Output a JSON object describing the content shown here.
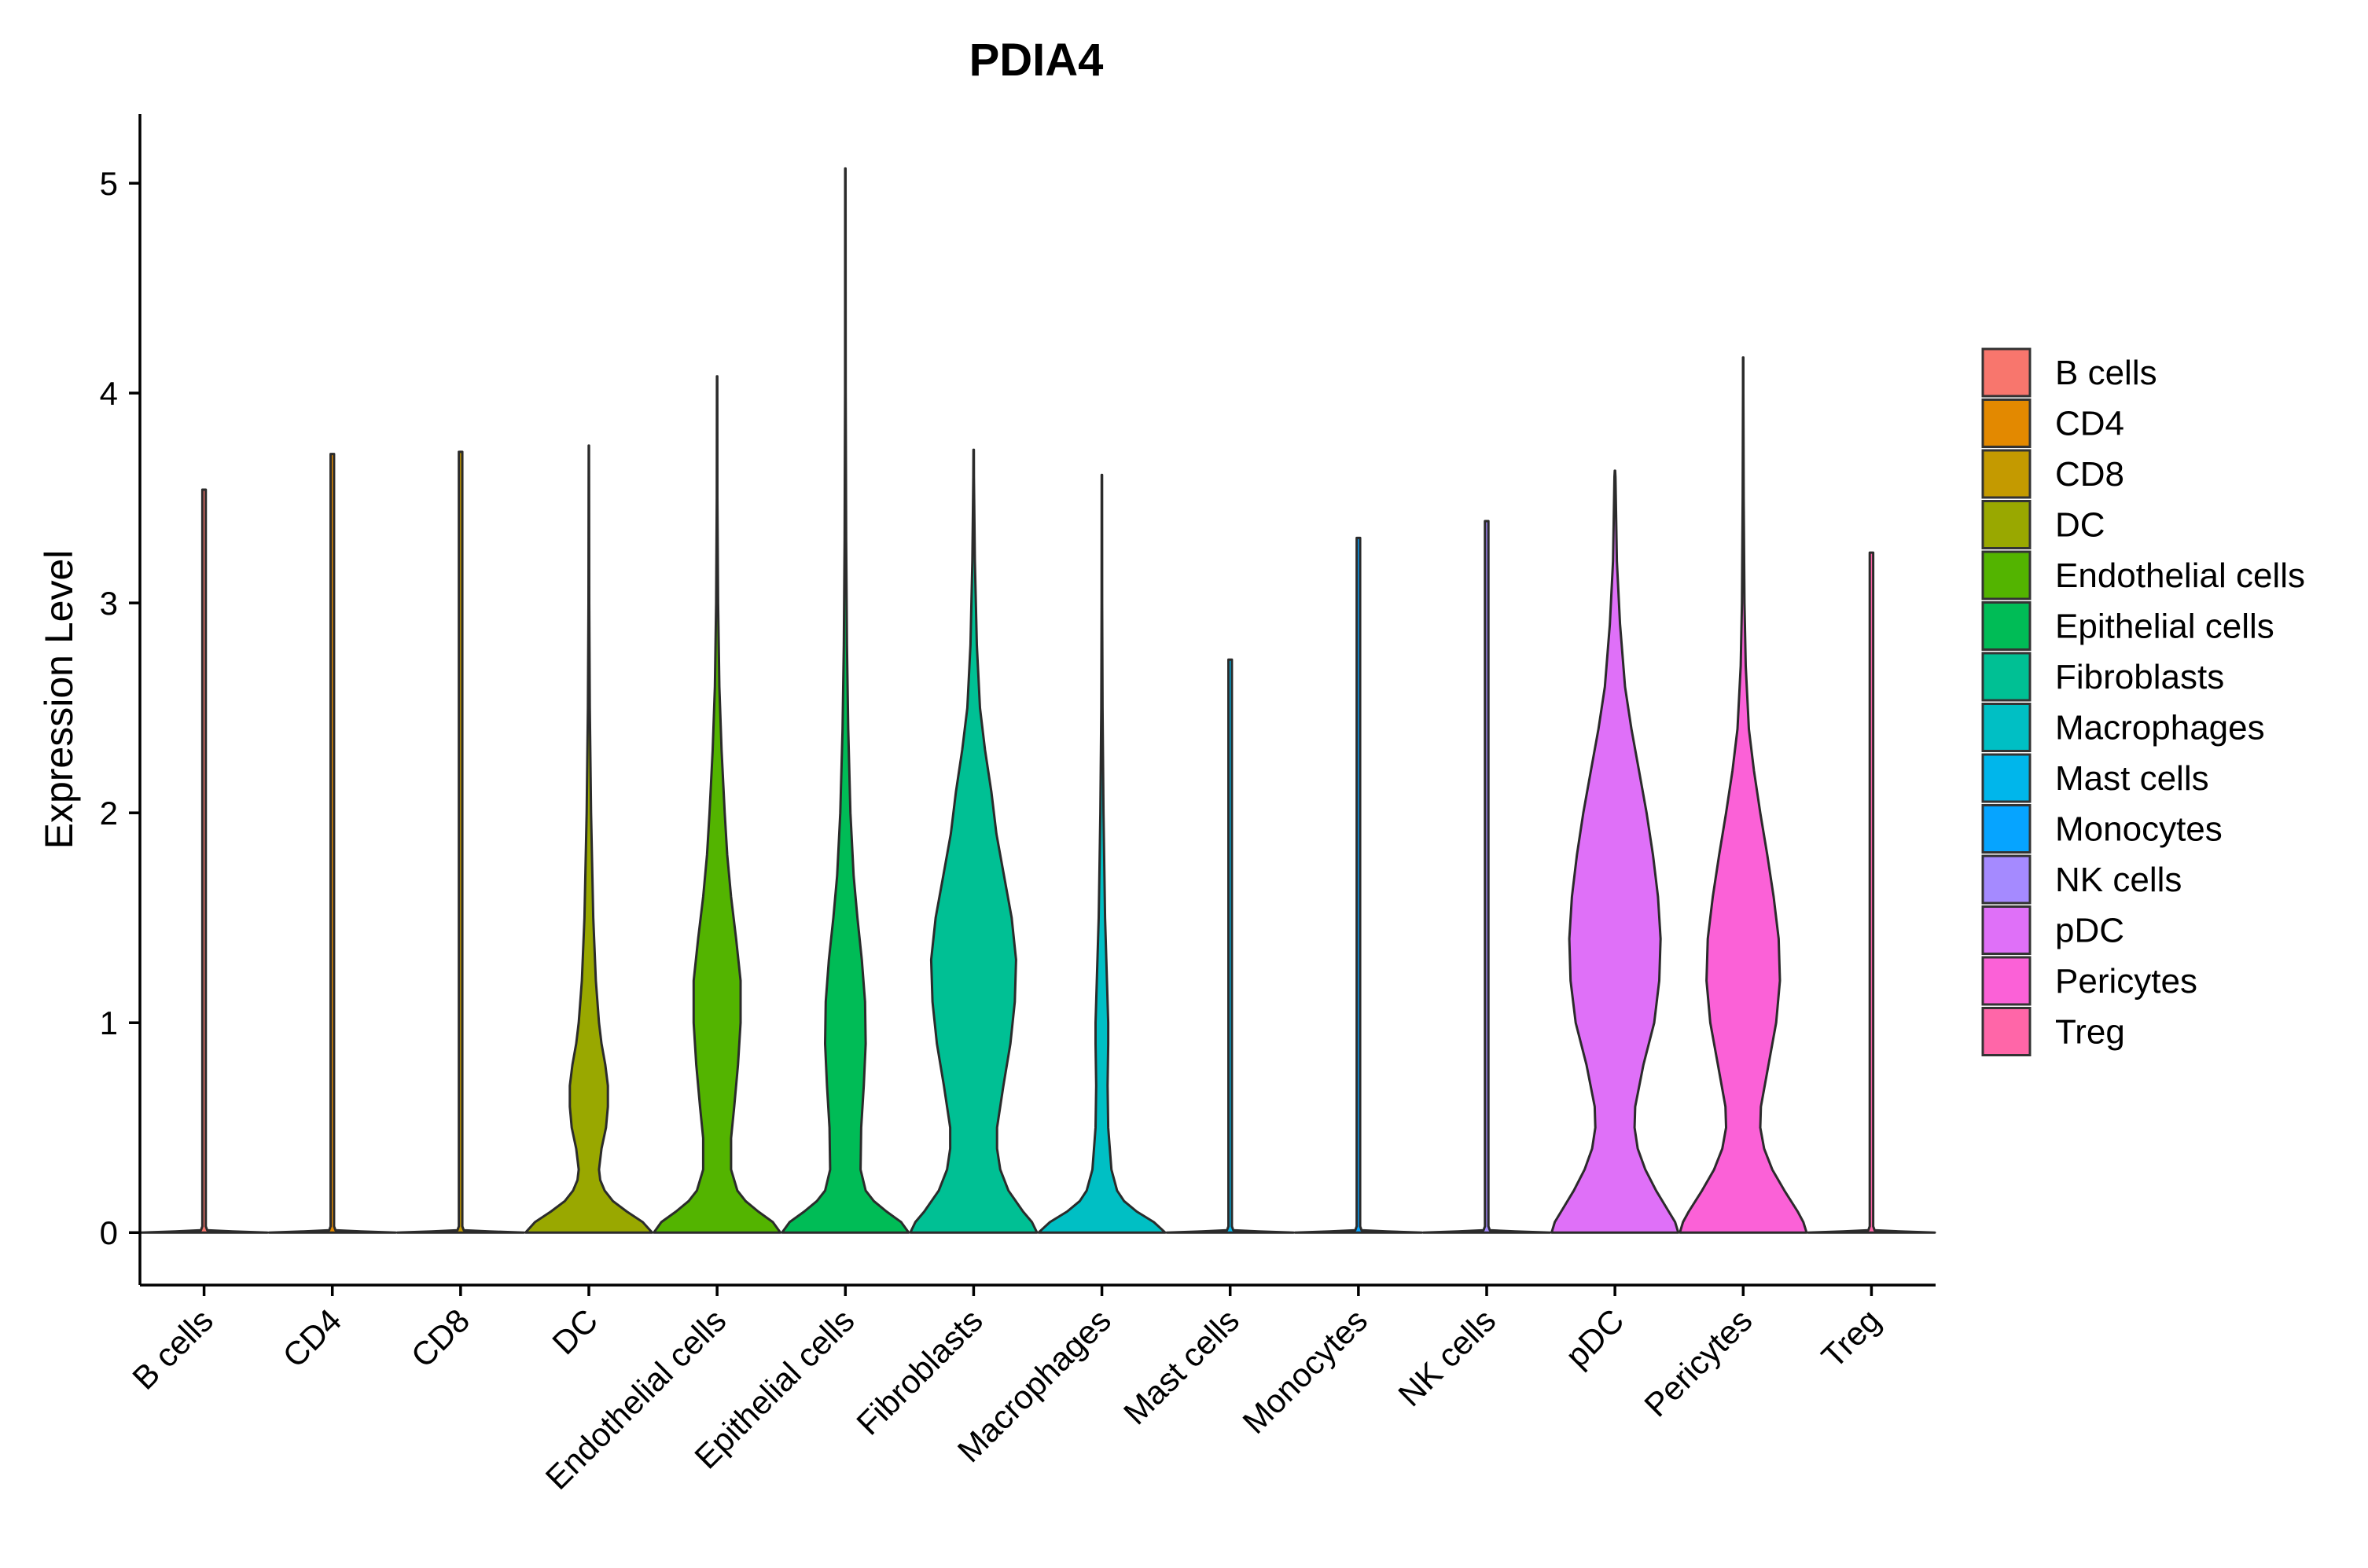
{
  "chart_data": {
    "type": "violin",
    "title": "PDIA4",
    "xlabel": "",
    "ylabel": "Expression Level",
    "ylim": [
      -0.25,
      5.33
    ],
    "yticks": [
      0,
      1,
      2,
      3,
      4,
      5
    ],
    "grid": false,
    "legend_position": "right",
    "categories": [
      "B cells",
      "CD4",
      "CD8",
      "DC",
      "Endothelial cells",
      "Epithelial cells",
      "Fibroblasts",
      "Macrophages",
      "Mast cells",
      "Monocytes",
      "NK cells",
      "pDC",
      "Pericytes",
      "Treg"
    ],
    "colors": [
      "#F8766D",
      "#E38900",
      "#C49A00",
      "#99A800",
      "#53B400",
      "#00BC56",
      "#00C094",
      "#00BFC4",
      "#00B6EB",
      "#06A4FF",
      "#A58AFF",
      "#DF70F8",
      "#FB61D7",
      "#FF66A8"
    ],
    "max_values": [
      3.54,
      3.71,
      3.72,
      3.75,
      4.08,
      5.07,
      3.73,
      3.61,
      2.73,
      3.31,
      3.39,
      3.63,
      4.17,
      3.24
    ],
    "density_profiles": [
      [],
      [],
      [],
      [
        [
          0,
          1.0
        ],
        [
          0.05,
          0.85
        ],
        [
          0.1,
          0.6
        ],
        [
          0.15,
          0.38
        ],
        [
          0.2,
          0.25
        ],
        [
          0.25,
          0.18
        ],
        [
          0.3,
          0.16
        ],
        [
          0.4,
          0.2
        ],
        [
          0.5,
          0.27
        ],
        [
          0.6,
          0.3
        ],
        [
          0.7,
          0.3
        ],
        [
          0.8,
          0.26
        ],
        [
          0.9,
          0.2
        ],
        [
          1.0,
          0.16
        ],
        [
          1.2,
          0.11
        ],
        [
          1.5,
          0.07
        ],
        [
          2.0,
          0.035
        ],
        [
          2.5,
          0.015
        ],
        [
          3.0,
          0.006
        ]
      ],
      [
        [
          0,
          1.0
        ],
        [
          0.05,
          0.88
        ],
        [
          0.1,
          0.65
        ],
        [
          0.15,
          0.45
        ],
        [
          0.2,
          0.32
        ],
        [
          0.3,
          0.22
        ],
        [
          0.45,
          0.22
        ],
        [
          0.6,
          0.27
        ],
        [
          0.8,
          0.33
        ],
        [
          1.0,
          0.37
        ],
        [
          1.2,
          0.37
        ],
        [
          1.4,
          0.3
        ],
        [
          1.6,
          0.22
        ],
        [
          1.8,
          0.16
        ],
        [
          2.0,
          0.12
        ],
        [
          2.3,
          0.07
        ],
        [
          2.6,
          0.035
        ],
        [
          3.0,
          0.015
        ],
        [
          3.5,
          0.005
        ]
      ],
      [
        [
          0,
          1.0
        ],
        [
          0.05,
          0.88
        ],
        [
          0.1,
          0.65
        ],
        [
          0.15,
          0.45
        ],
        [
          0.2,
          0.32
        ],
        [
          0.3,
          0.24
        ],
        [
          0.5,
          0.25
        ],
        [
          0.7,
          0.29
        ],
        [
          0.9,
          0.32
        ],
        [
          1.1,
          0.31
        ],
        [
          1.3,
          0.26
        ],
        [
          1.5,
          0.19
        ],
        [
          1.7,
          0.13
        ],
        [
          2.0,
          0.08
        ],
        [
          2.4,
          0.045
        ],
        [
          2.8,
          0.025
        ],
        [
          3.3,
          0.012
        ],
        [
          4.0,
          0.005
        ]
      ],
      [
        [
          0,
          1.0
        ],
        [
          0.05,
          0.92
        ],
        [
          0.1,
          0.78
        ],
        [
          0.2,
          0.55
        ],
        [
          0.3,
          0.42
        ],
        [
          0.4,
          0.37
        ],
        [
          0.5,
          0.37
        ],
        [
          0.7,
          0.47
        ],
        [
          0.9,
          0.58
        ],
        [
          1.1,
          0.65
        ],
        [
          1.3,
          0.67
        ],
        [
          1.5,
          0.6
        ],
        [
          1.7,
          0.48
        ],
        [
          1.9,
          0.36
        ],
        [
          2.1,
          0.28
        ],
        [
          2.3,
          0.18
        ],
        [
          2.5,
          0.1
        ],
        [
          2.8,
          0.05
        ],
        [
          3.2,
          0.02
        ],
        [
          3.6,
          0.005
        ]
      ],
      [
        [
          0,
          1.0
        ],
        [
          0.05,
          0.82
        ],
        [
          0.1,
          0.55
        ],
        [
          0.15,
          0.35
        ],
        [
          0.2,
          0.24
        ],
        [
          0.3,
          0.15
        ],
        [
          0.5,
          0.1
        ],
        [
          0.7,
          0.09
        ],
        [
          0.9,
          0.1
        ],
        [
          1.0,
          0.1
        ],
        [
          1.2,
          0.08
        ],
        [
          1.5,
          0.05
        ],
        [
          2.0,
          0.025
        ],
        [
          2.5,
          0.01
        ],
        [
          3.0,
          0.004
        ]
      ],
      [],
      [],
      [],
      [
        [
          0,
          1.0
        ],
        [
          0.05,
          0.95
        ],
        [
          0.1,
          0.85
        ],
        [
          0.2,
          0.65
        ],
        [
          0.3,
          0.48
        ],
        [
          0.4,
          0.36
        ],
        [
          0.5,
          0.31
        ],
        [
          0.6,
          0.32
        ],
        [
          0.8,
          0.45
        ],
        [
          1.0,
          0.62
        ],
        [
          1.2,
          0.7
        ],
        [
          1.4,
          0.72
        ],
        [
          1.6,
          0.68
        ],
        [
          1.8,
          0.6
        ],
        [
          2.0,
          0.5
        ],
        [
          2.2,
          0.38
        ],
        [
          2.4,
          0.26
        ],
        [
          2.6,
          0.16
        ],
        [
          2.9,
          0.08
        ],
        [
          3.2,
          0.03
        ],
        [
          3.6,
          0.008
        ]
      ],
      [
        [
          0,
          1.0
        ],
        [
          0.05,
          0.95
        ],
        [
          0.1,
          0.86
        ],
        [
          0.2,
          0.65
        ],
        [
          0.3,
          0.46
        ],
        [
          0.4,
          0.33
        ],
        [
          0.5,
          0.27
        ],
        [
          0.6,
          0.28
        ],
        [
          0.8,
          0.4
        ],
        [
          1.0,
          0.52
        ],
        [
          1.2,
          0.58
        ],
        [
          1.4,
          0.56
        ],
        [
          1.6,
          0.48
        ],
        [
          1.8,
          0.38
        ],
        [
          2.0,
          0.27
        ],
        [
          2.2,
          0.17
        ],
        [
          2.4,
          0.09
        ],
        [
          2.7,
          0.04
        ],
        [
          3.0,
          0.02
        ],
        [
          3.5,
          0.008
        ],
        [
          4.0,
          0.003
        ]
      ],
      []
    ]
  }
}
